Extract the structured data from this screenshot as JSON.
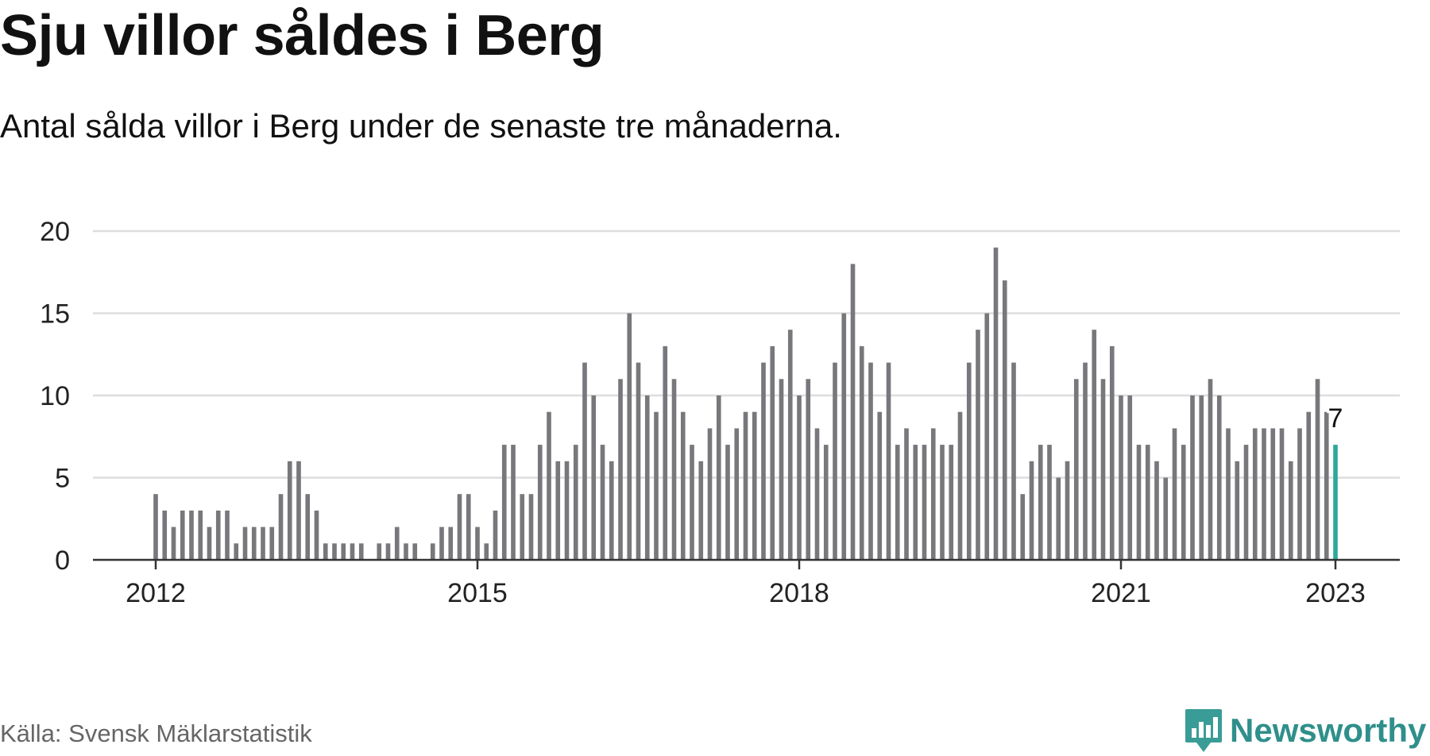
{
  "title": "Sju villor såldes i Berg",
  "subtitle": "Antal sålda villor i Berg under de senaste tre månaderna.",
  "source": "Källa: Svensk Mäklarstatistik",
  "brand": {
    "name": "Newsworthy",
    "icon": "newsworthy-logo-icon",
    "color": "#3a9c96"
  },
  "colors": {
    "bar": "#77777c",
    "highlight": "#2ea89a",
    "grid": "#dddddd",
    "axis": "#333333",
    "text": "#222222"
  },
  "chart_data": {
    "type": "bar",
    "x_start": "2012-01",
    "x_end": "2023-01",
    "values": [
      4,
      3,
      2,
      3,
      3,
      3,
      2,
      3,
      3,
      1,
      2,
      2,
      2,
      2,
      4,
      6,
      6,
      4,
      3,
      1,
      1,
      1,
      1,
      1,
      0,
      1,
      1,
      2,
      1,
      1,
      0,
      1,
      2,
      2,
      4,
      4,
      2,
      1,
      3,
      7,
      7,
      4,
      4,
      7,
      9,
      6,
      6,
      7,
      12,
      10,
      7,
      6,
      11,
      15,
      12,
      10,
      9,
      13,
      11,
      9,
      7,
      6,
      8,
      10,
      7,
      8,
      9,
      9,
      12,
      13,
      11,
      14,
      10,
      11,
      8,
      7,
      12,
      15,
      18,
      13,
      12,
      9,
      12,
      7,
      8,
      7,
      7,
      8,
      7,
      7,
      9,
      12,
      14,
      15,
      19,
      17,
      12,
      4,
      6,
      7,
      7,
      5,
      6,
      11,
      12,
      14,
      11,
      13,
      10,
      10,
      7,
      7,
      6,
      5,
      8,
      7,
      10,
      10,
      11,
      10,
      8,
      6,
      7,
      8,
      8,
      8,
      8,
      6,
      8,
      9,
      11,
      9,
      7
    ],
    "highlight": {
      "x": "2023-01",
      "value": 7,
      "label": "7"
    },
    "xticks": [
      "2012",
      "2015",
      "2018",
      "2021",
      "2023"
    ],
    "yticks": [
      0,
      5,
      10,
      15,
      20
    ],
    "ylim": [
      0,
      20
    ],
    "grid": true,
    "xlabel": "",
    "ylabel": ""
  }
}
